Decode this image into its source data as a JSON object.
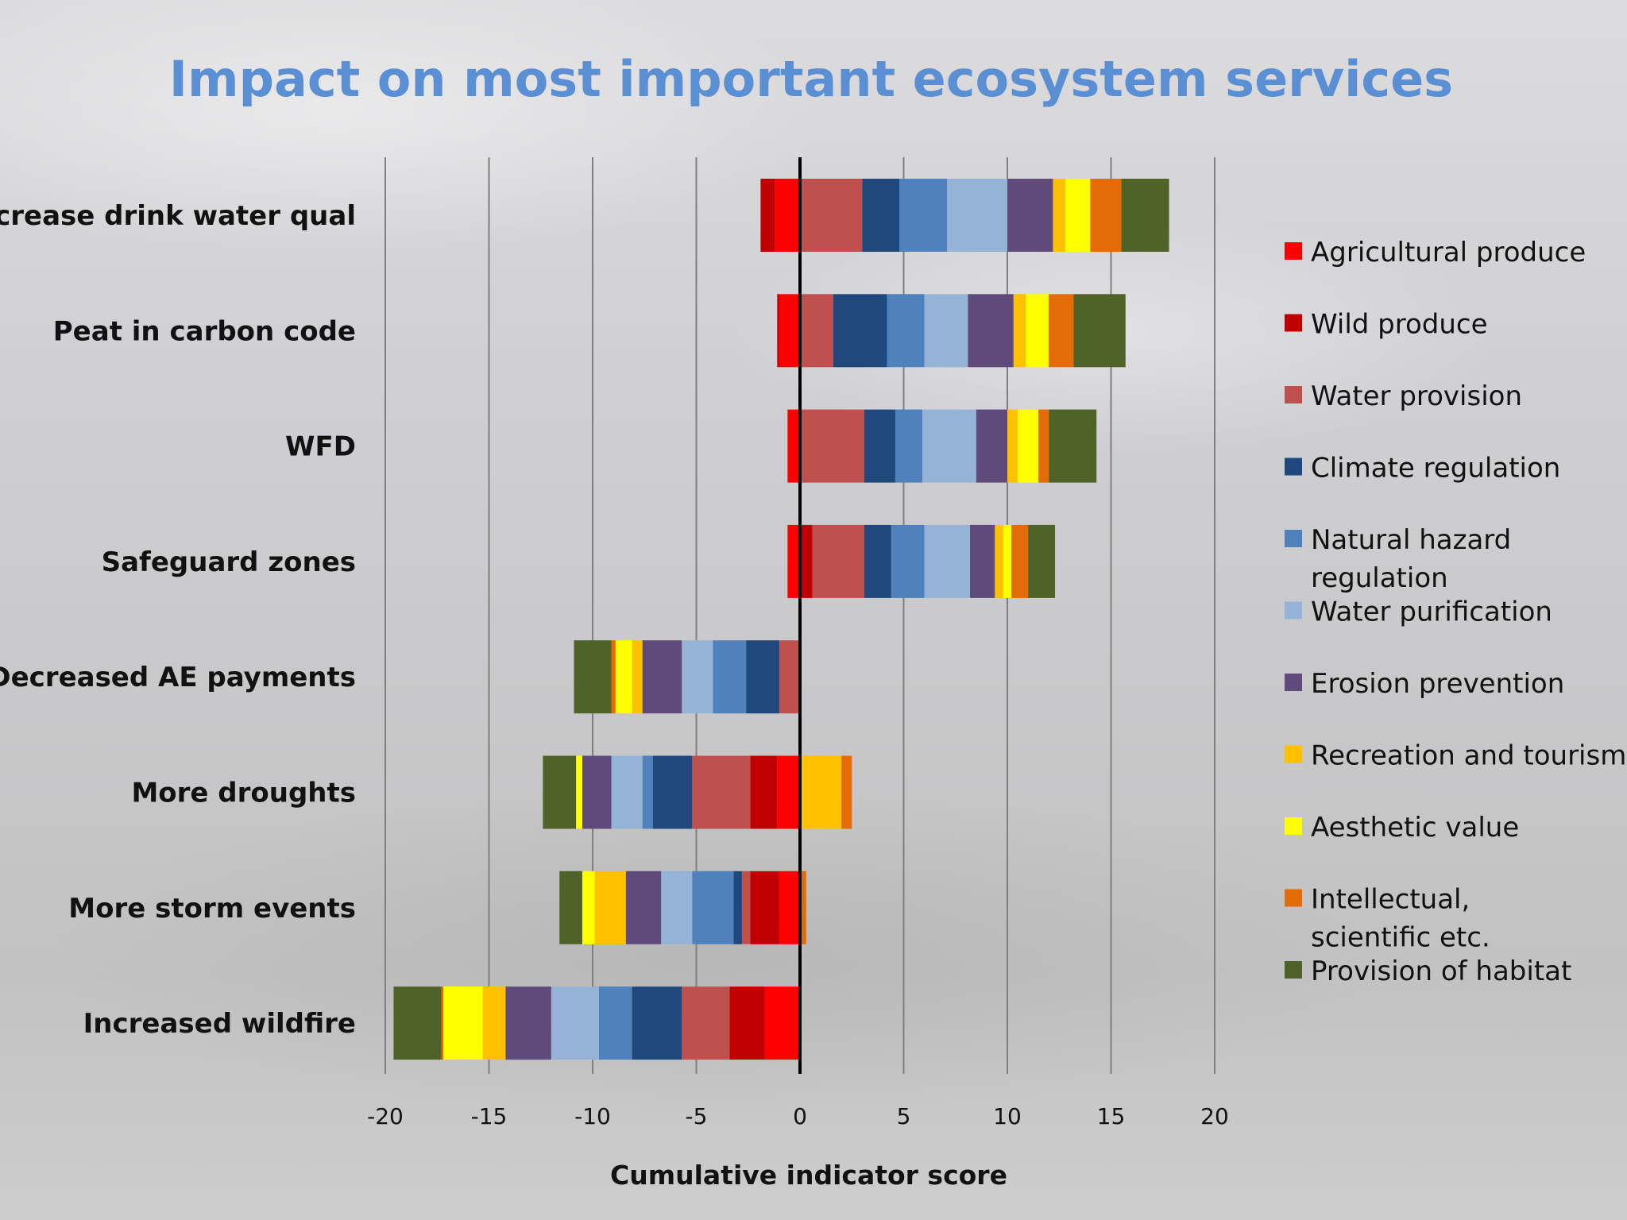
{
  "chart_data": {
    "type": "bar",
    "orientation": "horizontal",
    "stacked": true,
    "title": "Impact on most important ecosystem services",
    "xlabel": "Cumulative indicator score",
    "ylabel": "",
    "xlim": [
      -20,
      20
    ],
    "xticks": [
      -20,
      -15,
      -10,
      -5,
      0,
      5,
      10,
      15,
      20
    ],
    "grid": "vertical",
    "legend_position": "right",
    "title_color": "#5b8fd4",
    "categories": [
      "Increase drink water qual",
      "Peat in carbon code",
      "WFD",
      "Safeguard zones",
      "Decreased AE payments",
      "More droughts",
      "More storm events",
      "Increased wildfire"
    ],
    "series": [
      {
        "name": "Agricultural produce",
        "color": "#ff0000",
        "values": [
          -1.2,
          -1.0,
          -0.6,
          -0.6,
          0,
          -1.1,
          -1.0,
          -1.7
        ]
      },
      {
        "name": "Wild produce",
        "color": "#c00000",
        "values": [
          -0.7,
          -0.1,
          0,
          0.6,
          0,
          -1.3,
          -1.4,
          -1.7
        ]
      },
      {
        "name": "Water provision",
        "color": "#c0504d",
        "values": [
          3.0,
          1.6,
          3.1,
          2.5,
          -1.0,
          -2.8,
          -0.4,
          -2.3
        ]
      },
      {
        "name": "Climate regulation",
        "color": "#1f497d",
        "values": [
          1.8,
          2.6,
          1.5,
          1.3,
          -1.6,
          -1.9,
          -0.4,
          -2.4
        ]
      },
      {
        "name": "Natural hazard regulation",
        "color": "#4f81bd",
        "values": [
          2.3,
          1.8,
          1.3,
          1.6,
          -1.6,
          -0.5,
          -2.0,
          -1.6
        ]
      },
      {
        "name": "Water purification",
        "color": "#95b3d7",
        "values": [
          2.9,
          2.1,
          2.6,
          2.2,
          -1.5,
          -1.5,
          -1.5,
          -2.3
        ]
      },
      {
        "name": "Erosion prevention",
        "color": "#604a7b",
        "values": [
          2.2,
          2.2,
          1.5,
          1.2,
          -1.9,
          -1.4,
          -1.7,
          -2.2
        ]
      },
      {
        "name": "Recreation and tourism",
        "color": "#ffc000",
        "values": [
          0.6,
          0.6,
          0.5,
          0.4,
          -0.5,
          2.0,
          -1.5,
          -1.1
        ]
      },
      {
        "name": "Aesthetic value",
        "color": "#ffff00",
        "values": [
          1.2,
          1.1,
          1.0,
          0.4,
          -0.8,
          -0.3,
          -0.6,
          -1.9
        ]
      },
      {
        "name": "Intellectual, scientific etc.",
        "color": "#e36c09",
        "values": [
          1.5,
          1.2,
          0.5,
          0.8,
          -0.2,
          0.5,
          0.3,
          -0.1
        ]
      },
      {
        "name": "Provision of habitat",
        "color": "#4f6228",
        "values": [
          2.3,
          2.5,
          2.3,
          1.3,
          -1.8,
          -1.6,
          -1.1,
          -2.3
        ]
      }
    ]
  }
}
